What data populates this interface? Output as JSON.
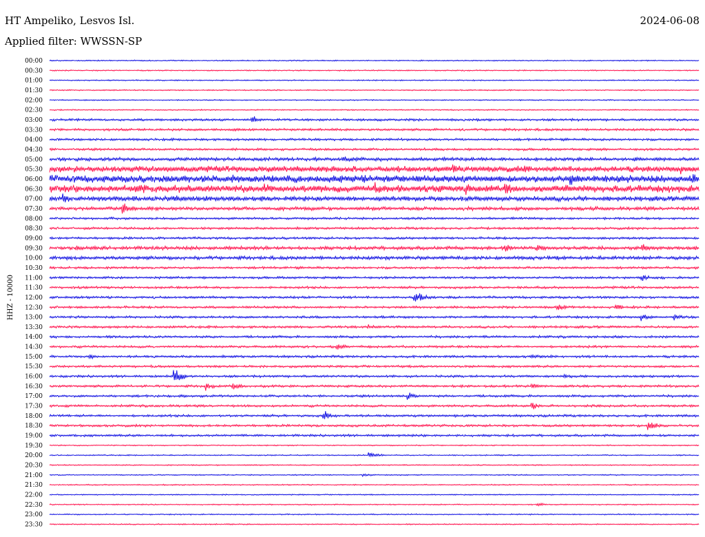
{
  "header": {
    "station": "HT Ampeliko, Lesvos Isl.",
    "date": "2024-06-08",
    "filter": "Applied filter: WWSSN-SP",
    "channel": "HHZ - 10000"
  },
  "colors": {
    "even_row": "#0000e0",
    "odd_row": "#ff0040"
  },
  "chart_data": {
    "type": "line",
    "title": "HT Ampeliko, Lesvos Isl.",
    "subtitle": "Applied filter: WWSSN-SP",
    "ylabel": "HHZ - 10000",
    "xlabel": "",
    "row_labels": [
      "00:00",
      "00:30",
      "01:00",
      "01:30",
      "02:00",
      "02:30",
      "03:00",
      "03:30",
      "04:00",
      "04:30",
      "05:00",
      "05:30",
      "06:00",
      "06:30",
      "07:00",
      "07:30",
      "08:00",
      "08:30",
      "09:00",
      "09:30",
      "10:00",
      "10:30",
      "11:00",
      "11:30",
      "12:00",
      "12:30",
      "13:00",
      "13:30",
      "14:00",
      "14:30",
      "15:00",
      "15:30",
      "16:00",
      "16:30",
      "17:00",
      "17:30",
      "18:00",
      "18:30",
      "19:00",
      "19:30",
      "20:00",
      "20:30",
      "21:00",
      "21:30",
      "22:00",
      "22:30",
      "23:00",
      "23:30"
    ],
    "row_minutes": 30,
    "noise_level": [
      1,
      1,
      1,
      1,
      1,
      1,
      2,
      2,
      2,
      2,
      3,
      5,
      6,
      6,
      4,
      3,
      2,
      2,
      2,
      3,
      3,
      2,
      2,
      2,
      2,
      2,
      2,
      2,
      2,
      2,
      2,
      2,
      2,
      2,
      2,
      2,
      2,
      2,
      2,
      1,
      1,
      1,
      1,
      1,
      1,
      1,
      1,
      1
    ],
    "events": [
      {
        "row": 6,
        "pos": 0.31,
        "amp": 8
      },
      {
        "row": 7,
        "pos": 0.28,
        "amp": 5
      },
      {
        "row": 10,
        "pos": 0.45,
        "amp": 6
      },
      {
        "row": 10,
        "pos": 0.9,
        "amp": 6
      },
      {
        "row": 11,
        "pos": 0.62,
        "amp": 10
      },
      {
        "row": 11,
        "pos": 0.73,
        "amp": 10
      },
      {
        "row": 11,
        "pos": 0.97,
        "amp": 10
      },
      {
        "row": 12,
        "pos": 0.28,
        "amp": 12
      },
      {
        "row": 12,
        "pos": 0.48,
        "amp": 12
      },
      {
        "row": 12,
        "pos": 0.8,
        "amp": 14
      },
      {
        "row": 12,
        "pos": 0.99,
        "amp": 10
      },
      {
        "row": 13,
        "pos": 0.14,
        "amp": 12
      },
      {
        "row": 13,
        "pos": 0.33,
        "amp": 12
      },
      {
        "row": 13,
        "pos": 0.5,
        "amp": 12
      },
      {
        "row": 13,
        "pos": 0.64,
        "amp": 14
      },
      {
        "row": 13,
        "pos": 0.7,
        "amp": 14
      },
      {
        "row": 14,
        "pos": 0.02,
        "amp": 10
      },
      {
        "row": 14,
        "pos": 0.19,
        "amp": 8
      },
      {
        "row": 14,
        "pos": 0.24,
        "amp": 8
      },
      {
        "row": 15,
        "pos": 0.11,
        "amp": 14
      },
      {
        "row": 15,
        "pos": 0.15,
        "amp": 6
      },
      {
        "row": 19,
        "pos": 0.04,
        "amp": 7
      },
      {
        "row": 19,
        "pos": 0.7,
        "amp": 8
      },
      {
        "row": 19,
        "pos": 0.75,
        "amp": 8
      },
      {
        "row": 19,
        "pos": 0.91,
        "amp": 9
      },
      {
        "row": 22,
        "pos": 0.91,
        "amp": 6
      },
      {
        "row": 24,
        "pos": 0.56,
        "amp": 14
      },
      {
        "row": 25,
        "pos": 0.78,
        "amp": 7
      },
      {
        "row": 25,
        "pos": 0.87,
        "amp": 6
      },
      {
        "row": 26,
        "pos": 0.91,
        "amp": 8
      },
      {
        "row": 26,
        "pos": 0.96,
        "amp": 6
      },
      {
        "row": 27,
        "pos": 0.49,
        "amp": 5
      },
      {
        "row": 29,
        "pos": 0.44,
        "amp": 9
      },
      {
        "row": 30,
        "pos": 0.06,
        "amp": 5
      },
      {
        "row": 30,
        "pos": 0.74,
        "amp": 6
      },
      {
        "row": 32,
        "pos": 0.19,
        "amp": 14
      },
      {
        "row": 32,
        "pos": 0.79,
        "amp": 6
      },
      {
        "row": 33,
        "pos": 0.24,
        "amp": 7
      },
      {
        "row": 33,
        "pos": 0.28,
        "amp": 8
      },
      {
        "row": 33,
        "pos": 0.74,
        "amp": 6
      },
      {
        "row": 34,
        "pos": 0.55,
        "amp": 8
      },
      {
        "row": 35,
        "pos": 0.74,
        "amp": 8
      },
      {
        "row": 36,
        "pos": 0.42,
        "amp": 10
      },
      {
        "row": 37,
        "pos": 0.92,
        "amp": 10
      },
      {
        "row": 40,
        "pos": 0.49,
        "amp": 7
      },
      {
        "row": 42,
        "pos": 0.48,
        "amp": 4
      },
      {
        "row": 45,
        "pos": 0.75,
        "amp": 4
      }
    ],
    "date": "2024-06-08"
  }
}
